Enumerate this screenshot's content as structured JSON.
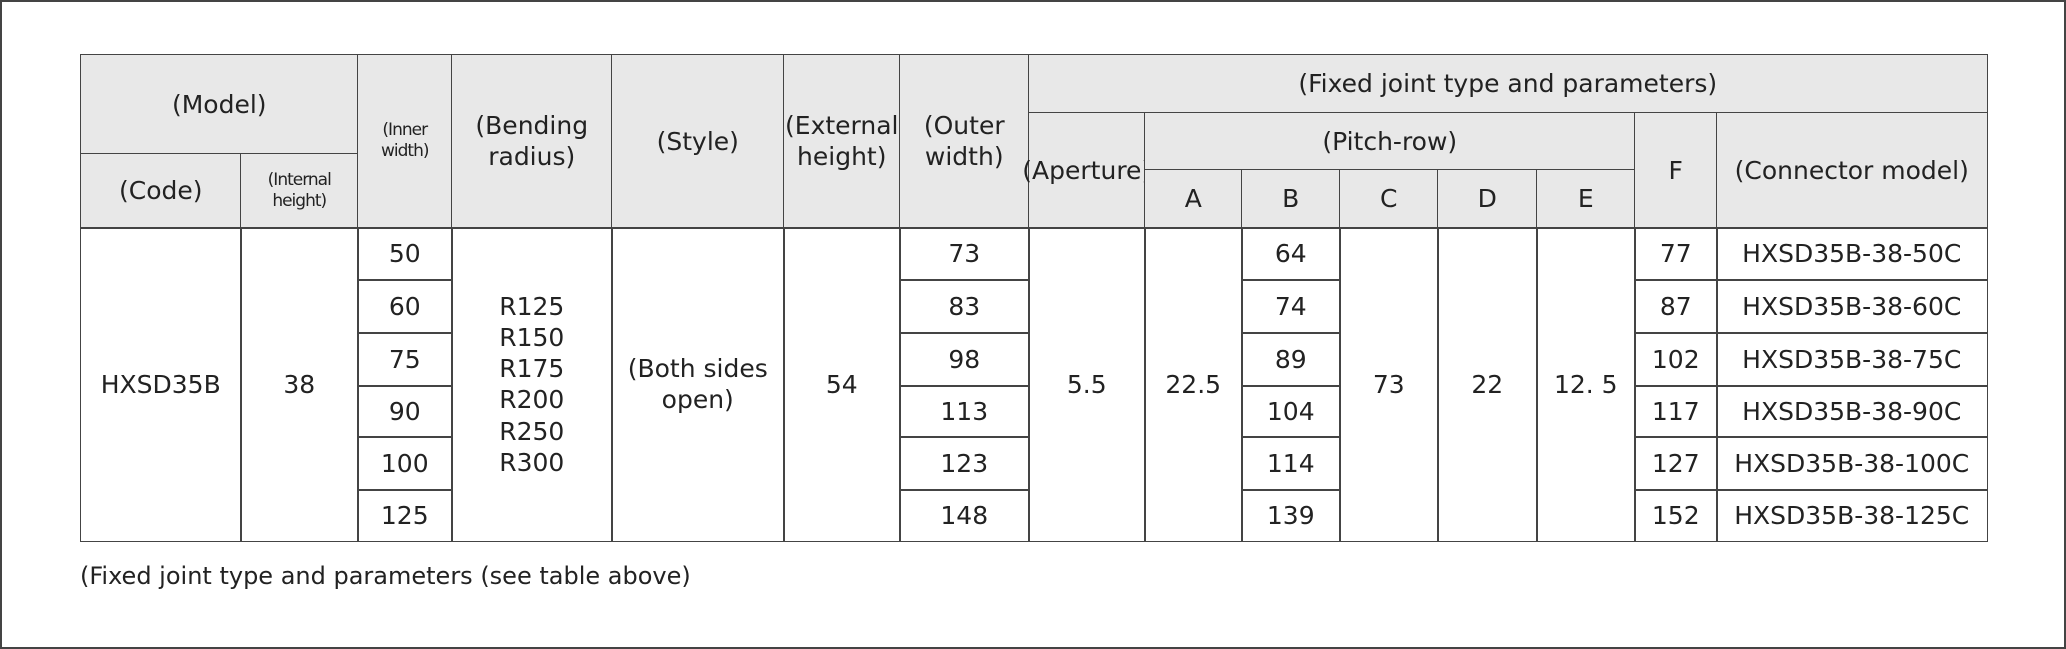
{
  "header": {
    "model": "(Model)",
    "code": "(Code)",
    "internal_height": "(Internal height)",
    "inner_width": "(Inner width)",
    "bending_radius": "(Bending radius)",
    "style": "(Style)",
    "external_height": "(External height)",
    "outer_width": "(Outer width)",
    "fixed_joint": "(Fixed joint type and parameters)",
    "aperture": "(Aperture)",
    "pitch_row": "(Pitch-row)",
    "a": "A",
    "b": "B",
    "c": "C",
    "d": "D",
    "e": "E",
    "f": "F",
    "connector_model": "(Connector model)"
  },
  "body": {
    "code": "HXSD35B",
    "internal_height": 38,
    "inner_width": [
      50,
      60,
      75,
      90,
      100,
      125
    ],
    "bending_radius": [
      "R125",
      "R150",
      "R175",
      "R200",
      "R250",
      "R300"
    ],
    "style": "(Both sides open)",
    "external_height": 54,
    "outer_width": [
      73,
      83,
      98,
      113,
      123,
      148
    ],
    "aperture": 5.5,
    "a": 22.5,
    "b": [
      64,
      74,
      89,
      104,
      114,
      139
    ],
    "c": 73,
    "d": 22,
    "e": "12. 5",
    "f": [
      77,
      87,
      102,
      117,
      127,
      152
    ],
    "connector_model": [
      "HXSD35B-38-50C",
      "HXSD35B-38-60C",
      "HXSD35B-38-75C",
      "HXSD35B-38-90C",
      "HXSD35B-38-100C",
      "HXSD35B-38-125C"
    ]
  },
  "footnote": "(Fixed joint type and parameters (see table above)"
}
